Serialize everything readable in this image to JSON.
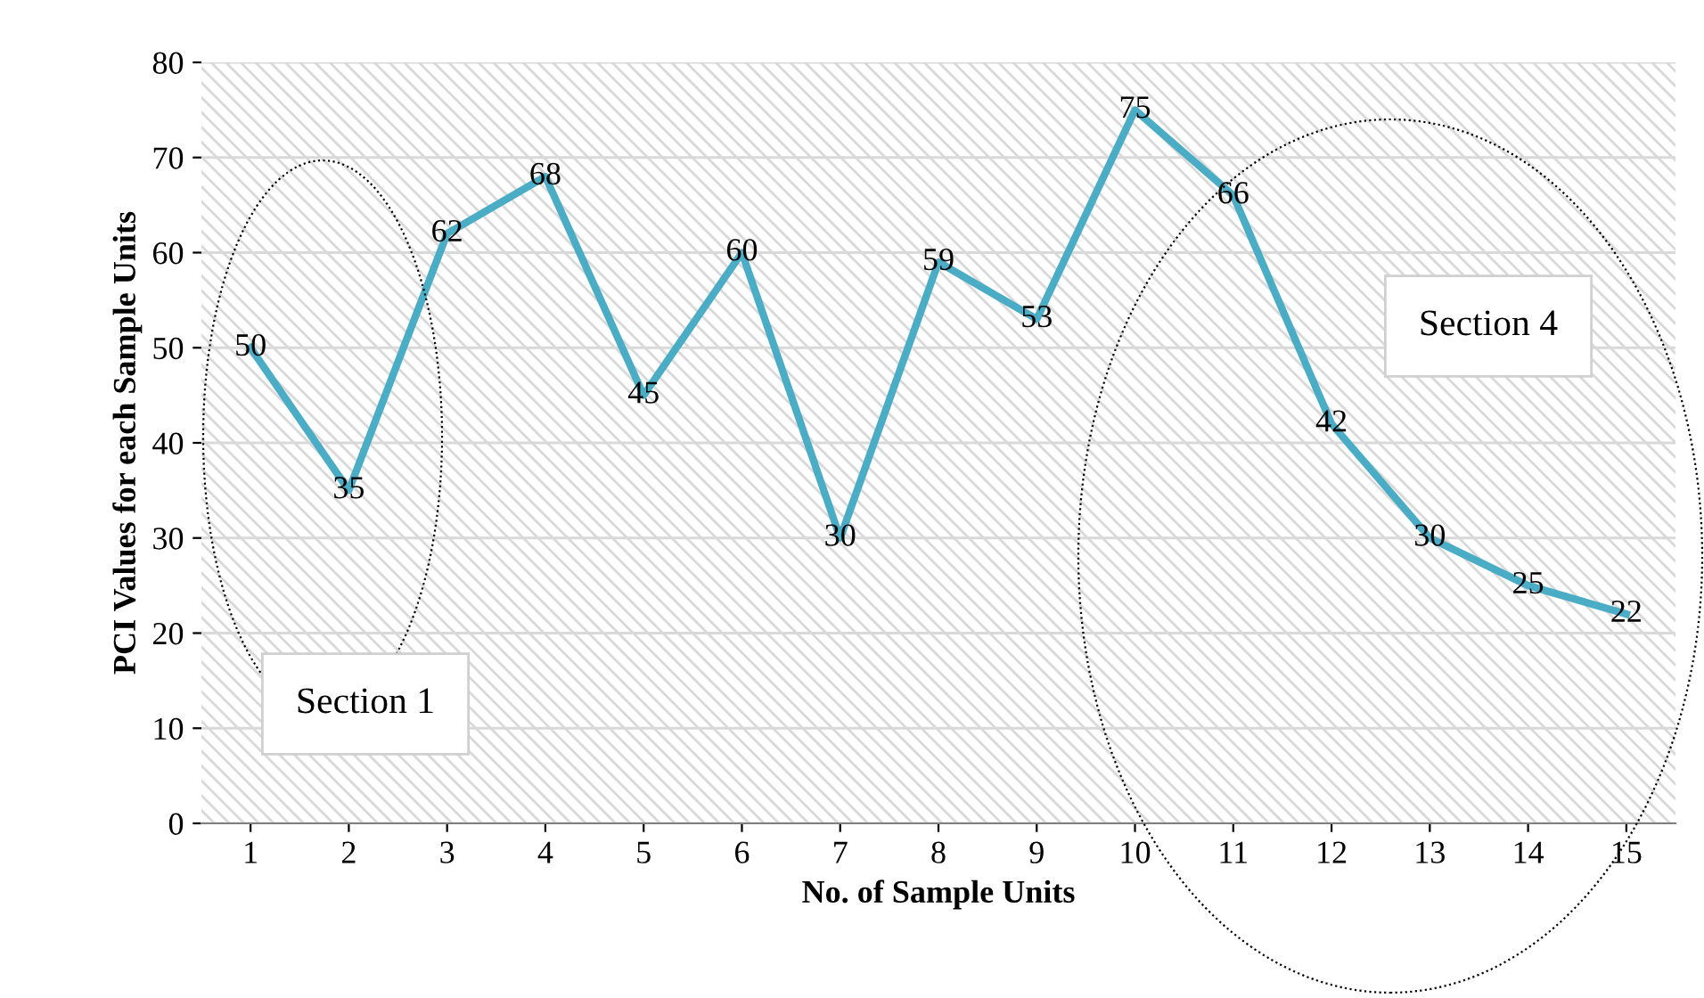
{
  "chart_data": {
    "type": "line",
    "xlabel": "No. of Sample Units",
    "ylabel": "PCI Values for each Sample Units",
    "categories": [
      "1",
      "2",
      "3",
      "4",
      "5",
      "6",
      "7",
      "8",
      "9",
      "10",
      "11",
      "12",
      "13",
      "14",
      "15"
    ],
    "series": [
      {
        "color": "#4bacc6",
        "values": [
          50,
          35,
          62,
          68,
          45,
          60,
          30,
          59,
          53,
          75,
          66,
          42,
          30,
          25,
          22
        ]
      }
    ],
    "ylim": [
      0,
      80
    ],
    "yticks": [
      0,
      10,
      20,
      30,
      40,
      50,
      60,
      70,
      80
    ],
    "grid": "y",
    "legend": false,
    "marker": "none",
    "line_style": "solid",
    "data_labels": true,
    "annotations": [
      "Section 1",
      "Section 4"
    ]
  }
}
